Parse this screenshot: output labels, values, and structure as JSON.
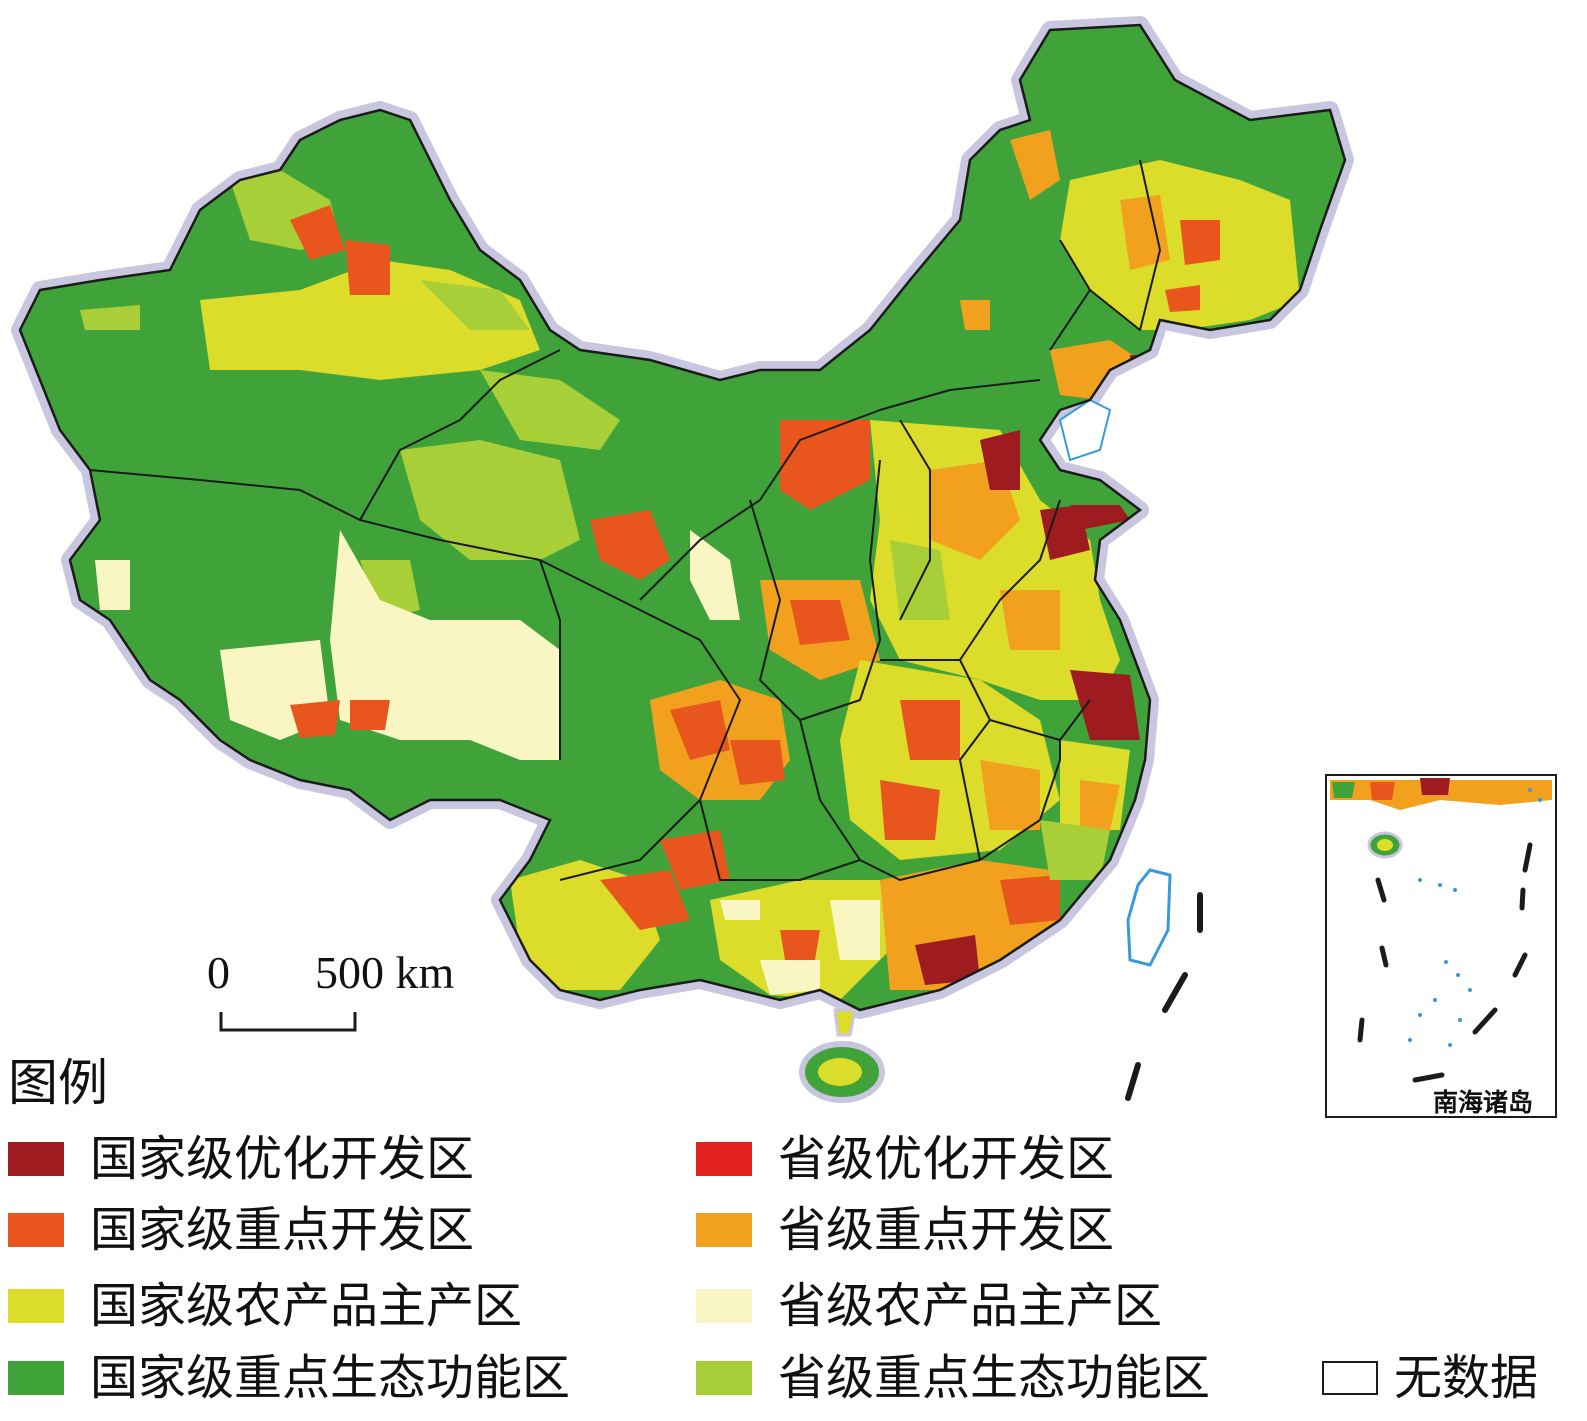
{
  "scale_bar": {
    "zero_label": "0",
    "distance_label": "500 km"
  },
  "inset": {
    "label": "南海诸岛"
  },
  "legend": {
    "title": "图例",
    "items": [
      {
        "label": "国家级优化开发区",
        "color": "#9e1b20"
      },
      {
        "label": "省级优化开发区",
        "color": "#e3221d"
      },
      {
        "label": "国家级重点开发区",
        "color": "#e8561e"
      },
      {
        "label": "省级重点开发区",
        "color": "#f2a11f"
      },
      {
        "label": "国家级农产品主产区",
        "color": "#dcdc2a"
      },
      {
        "label": "省级农产品主产区",
        "color": "#faf6c4"
      },
      {
        "label": "国家级重点生态功能区",
        "color": "#3fa33a"
      },
      {
        "label": "省级重点生态功能区",
        "color": "#a9cf38"
      },
      {
        "label": "无数据",
        "color": "#ffffff"
      }
    ]
  }
}
